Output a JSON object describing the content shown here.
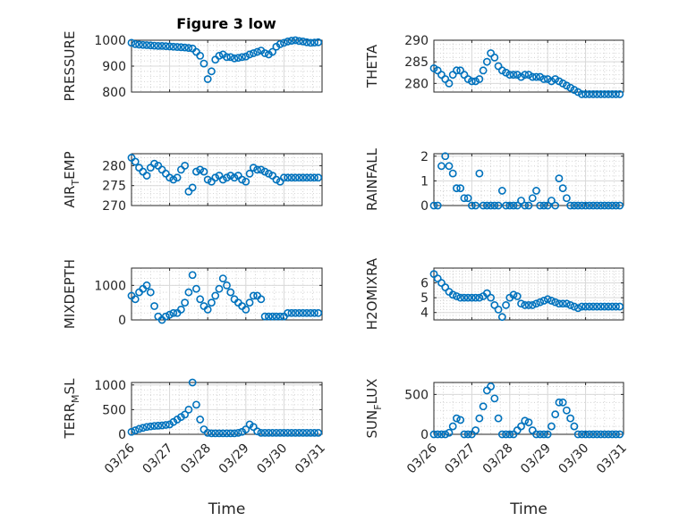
{
  "figure": {
    "title": "Figure 3 low",
    "marker_color": "#0072BD"
  },
  "chart_data": [
    {
      "type": "scatter",
      "subplot": "left-row-1",
      "title": "Figure 3 low",
      "ylabel": "PRESSURE",
      "xlabel": "",
      "xlim": [
        0,
        5
      ],
      "ylim": [
        800,
        1000
      ],
      "yticks": [
        800,
        900,
        1000
      ],
      "xticks": [
        0,
        1,
        2,
        3,
        4,
        5
      ],
      "xticklabels": [],
      "minor_grid": true,
      "grid": true,
      "x": [
        0.0,
        0.1,
        0.2,
        0.3,
        0.4,
        0.5,
        0.6,
        0.7,
        0.8,
        0.9,
        1.0,
        1.1,
        1.2,
        1.3,
        1.4,
        1.5,
        1.6,
        1.7,
        1.8,
        1.9,
        2.0,
        2.1,
        2.2,
        2.3,
        2.4,
        2.5,
        2.6,
        2.7,
        2.8,
        2.9,
        3.0,
        3.1,
        3.2,
        3.3,
        3.4,
        3.5,
        3.6,
        3.7,
        3.8,
        3.9,
        4.0,
        4.1,
        4.2,
        4.3,
        4.4,
        4.5,
        4.6,
        4.7,
        4.8,
        4.9
      ],
      "y": [
        990,
        985,
        983,
        982,
        981,
        980,
        979,
        978,
        978,
        977,
        976,
        975,
        974,
        973,
        972,
        970,
        968,
        955,
        940,
        910,
        850,
        880,
        925,
        940,
        945,
        935,
        935,
        930,
        932,
        935,
        937,
        945,
        950,
        955,
        960,
        950,
        945,
        955,
        975,
        985,
        990,
        995,
        998,
        1000,
        997,
        995,
        992,
        990,
        991,
        992
      ]
    },
    {
      "type": "scatter",
      "subplot": "right-row-1",
      "ylabel": "THETA",
      "xlabel": "",
      "xlim": [
        0,
        5
      ],
      "ylim": [
        278,
        290
      ],
      "yticks": [
        280,
        285,
        290
      ],
      "xticks": [
        0,
        1,
        2,
        3,
        4,
        5
      ],
      "xticklabels": [],
      "minor_grid": true,
      "grid": true,
      "x": [
        0.0,
        0.1,
        0.2,
        0.3,
        0.4,
        0.5,
        0.6,
        0.7,
        0.8,
        0.9,
        1.0,
        1.1,
        1.2,
        1.3,
        1.4,
        1.5,
        1.6,
        1.7,
        1.8,
        1.9,
        2.0,
        2.1,
        2.2,
        2.3,
        2.4,
        2.5,
        2.6,
        2.7,
        2.8,
        2.9,
        3.0,
        3.1,
        3.2,
        3.3,
        3.4,
        3.5,
        3.6,
        3.7,
        3.8,
        3.9,
        4.0,
        4.1,
        4.2,
        4.3,
        4.4,
        4.5,
        4.6,
        4.7,
        4.8,
        4.9
      ],
      "y": [
        283.5,
        283,
        282,
        281,
        280,
        282,
        283,
        283,
        282,
        281,
        280.5,
        280.5,
        281,
        283,
        285,
        287,
        286,
        284,
        283,
        282.5,
        282,
        282,
        282,
        281.5,
        282,
        282,
        281.5,
        281.5,
        281.5,
        281,
        281,
        280.5,
        281,
        280.5,
        280,
        279.5,
        279,
        278.5,
        278,
        277.5,
        277.5,
        277.5,
        277.5,
        277.5,
        277.5,
        277.5,
        277.5,
        277.5,
        277.5,
        277.5
      ]
    },
    {
      "type": "scatter",
      "subplot": "left-row-2",
      "ylabel": "AIR_TEMP",
      "xlabel": "",
      "xlim": [
        0,
        5
      ],
      "ylim": [
        270,
        283
      ],
      "yticks": [
        270,
        275,
        280
      ],
      "xticks": [
        0,
        1,
        2,
        3,
        4,
        5
      ],
      "xticklabels": [],
      "minor_grid": true,
      "grid": true,
      "x": [
        0.0,
        0.1,
        0.2,
        0.3,
        0.4,
        0.5,
        0.6,
        0.7,
        0.8,
        0.9,
        1.0,
        1.1,
        1.2,
        1.3,
        1.4,
        1.5,
        1.6,
        1.7,
        1.8,
        1.9,
        2.0,
        2.1,
        2.2,
        2.3,
        2.4,
        2.5,
        2.6,
        2.7,
        2.8,
        2.9,
        3.0,
        3.1,
        3.2,
        3.3,
        3.4,
        3.5,
        3.6,
        3.7,
        3.8,
        3.9,
        4.0,
        4.1,
        4.2,
        4.3,
        4.4,
        4.5,
        4.6,
        4.7,
        4.8,
        4.9
      ],
      "y": [
        282,
        281,
        279.5,
        278.5,
        277.5,
        279.5,
        280.5,
        280,
        279,
        278,
        277,
        276.5,
        277,
        279,
        280,
        273.5,
        274.5,
        278.5,
        279,
        278.5,
        276.5,
        276,
        277,
        277.5,
        276.5,
        277,
        277.5,
        277,
        277.5,
        276.5,
        276,
        278,
        279.5,
        279,
        279,
        278.5,
        278,
        277.5,
        276.5,
        276,
        277,
        277,
        277,
        277,
        277,
        277,
        277,
        277,
        277,
        277
      ]
    },
    {
      "type": "scatter",
      "subplot": "right-row-2",
      "ylabel": "RAINFALL",
      "xlabel": "",
      "xlim": [
        0,
        5
      ],
      "ylim": [
        0,
        2.1
      ],
      "yticks": [
        0,
        1,
        2
      ],
      "xticks": [
        0,
        1,
        2,
        3,
        4,
        5
      ],
      "xticklabels": [],
      "minor_grid": true,
      "grid": true,
      "x": [
        0.0,
        0.1,
        0.2,
        0.3,
        0.4,
        0.5,
        0.6,
        0.7,
        0.8,
        0.9,
        1.0,
        1.1,
        1.2,
        1.3,
        1.4,
        1.5,
        1.6,
        1.7,
        1.8,
        1.9,
        2.0,
        2.1,
        2.2,
        2.3,
        2.4,
        2.5,
        2.6,
        2.7,
        2.8,
        2.9,
        3.0,
        3.1,
        3.2,
        3.3,
        3.4,
        3.5,
        3.6,
        3.7,
        3.8,
        3.9,
        4.0,
        4.1,
        4.2,
        4.3,
        4.4,
        4.5,
        4.6,
        4.7,
        4.8,
        4.9
      ],
      "y": [
        0,
        0,
        1.6,
        2.0,
        1.6,
        1.3,
        0.7,
        0.7,
        0.3,
        0.3,
        0,
        0,
        1.3,
        0,
        0,
        0,
        0,
        0,
        0.6,
        0,
        0,
        0,
        0,
        0.2,
        0,
        0,
        0.3,
        0.6,
        0,
        0,
        0,
        0.2,
        0,
        1.1,
        0.7,
        0.3,
        0,
        0,
        0,
        0,
        0,
        0,
        0,
        0,
        0,
        0,
        0,
        0,
        0,
        0
      ]
    },
    {
      "type": "scatter",
      "subplot": "left-row-3",
      "ylabel": "MIXDEPTH",
      "xlabel": "",
      "xlim": [
        0,
        5
      ],
      "ylim": [
        0,
        1500
      ],
      "yticks": [
        0,
        1000
      ],
      "xticks": [
        0,
        1,
        2,
        3,
        4,
        5
      ],
      "xticklabels": [],
      "minor_grid": true,
      "grid": true,
      "x": [
        0.0,
        0.1,
        0.2,
        0.3,
        0.4,
        0.5,
        0.6,
        0.7,
        0.8,
        0.9,
        1.0,
        1.1,
        1.2,
        1.3,
        1.4,
        1.5,
        1.6,
        1.7,
        1.8,
        1.9,
        2.0,
        2.1,
        2.2,
        2.3,
        2.4,
        2.5,
        2.6,
        2.7,
        2.8,
        2.9,
        3.0,
        3.1,
        3.2,
        3.3,
        3.4,
        3.5,
        3.6,
        3.7,
        3.8,
        3.9,
        4.0,
        4.1,
        4.2,
        4.3,
        4.4,
        4.5,
        4.6,
        4.7,
        4.8,
        4.9
      ],
      "y": [
        700,
        600,
        800,
        900,
        1000,
        800,
        400,
        100,
        0,
        100,
        150,
        200,
        200,
        300,
        500,
        800,
        1300,
        900,
        600,
        400,
        300,
        500,
        700,
        900,
        1200,
        1000,
        800,
        600,
        500,
        400,
        300,
        500,
        700,
        700,
        600,
        100,
        100,
        100,
        100,
        100,
        100,
        200,
        200,
        200,
        200,
        200,
        200,
        200,
        200,
        200
      ]
    },
    {
      "type": "scatter",
      "subplot": "right-row-3",
      "ylabel": "H2OMIXRA",
      "xlabel": "",
      "xlim": [
        0,
        5
      ],
      "ylim": [
        3.5,
        7
      ],
      "yticks": [
        4,
        5,
        6
      ],
      "xticks": [
        0,
        1,
        2,
        3,
        4,
        5
      ],
      "xticklabels": [],
      "minor_grid": true,
      "grid": true,
      "x": [
        0.0,
        0.1,
        0.2,
        0.3,
        0.4,
        0.5,
        0.6,
        0.7,
        0.8,
        0.9,
        1.0,
        1.1,
        1.2,
        1.3,
        1.4,
        1.5,
        1.6,
        1.7,
        1.8,
        1.9,
        2.0,
        2.1,
        2.2,
        2.3,
        2.4,
        2.5,
        2.6,
        2.7,
        2.8,
        2.9,
        3.0,
        3.1,
        3.2,
        3.3,
        3.4,
        3.5,
        3.6,
        3.7,
        3.8,
        3.9,
        4.0,
        4.1,
        4.2,
        4.3,
        4.4,
        4.5,
        4.6,
        4.7,
        4.8,
        4.9
      ],
      "y": [
        6.6,
        6.3,
        6.0,
        5.7,
        5.4,
        5.2,
        5.1,
        5.0,
        5.0,
        5.0,
        5.0,
        5.0,
        5.0,
        5.1,
        5.3,
        5.0,
        4.5,
        4.2,
        3.7,
        4.5,
        5.0,
        5.2,
        5.1,
        4.6,
        4.5,
        4.5,
        4.5,
        4.6,
        4.7,
        4.8,
        4.9,
        4.8,
        4.7,
        4.6,
        4.6,
        4.6,
        4.5,
        4.4,
        4.3,
        4.4,
        4.4,
        4.4,
        4.4,
        4.4,
        4.4,
        4.4,
        4.4,
        4.4,
        4.4,
        4.4
      ]
    },
    {
      "type": "scatter",
      "subplot": "left-row-4",
      "ylabel": "TERR_MSL",
      "xlabel": "Time",
      "xlim": [
        0,
        5
      ],
      "ylim": [
        0,
        1050
      ],
      "yticks": [
        0,
        500,
        1000
      ],
      "xticks": [
        0,
        1,
        2,
        3,
        4,
        5
      ],
      "xticklabels": [
        "03/26",
        "03/27",
        "03/28",
        "03/29",
        "03/30",
        "03/31"
      ],
      "minor_grid": true,
      "grid": true,
      "x": [
        0.0,
        0.1,
        0.2,
        0.3,
        0.4,
        0.5,
        0.6,
        0.7,
        0.8,
        0.9,
        1.0,
        1.1,
        1.2,
        1.3,
        1.4,
        1.5,
        1.6,
        1.7,
        1.8,
        1.9,
        2.0,
        2.1,
        2.2,
        2.3,
        2.4,
        2.5,
        2.6,
        2.7,
        2.8,
        2.9,
        3.0,
        3.1,
        3.2,
        3.3,
        3.4,
        3.5,
        3.6,
        3.7,
        3.8,
        3.9,
        4.0,
        4.1,
        4.2,
        4.3,
        4.4,
        4.5,
        4.6,
        4.7,
        4.8,
        4.9
      ],
      "y": [
        50,
        80,
        110,
        130,
        150,
        160,
        170,
        175,
        180,
        190,
        200,
        250,
        300,
        350,
        400,
        500,
        1050,
        600,
        300,
        100,
        30,
        20,
        20,
        20,
        20,
        20,
        20,
        20,
        30,
        50,
        100,
        200,
        150,
        60,
        30,
        30,
        30,
        30,
        30,
        30,
        30,
        30,
        30,
        30,
        30,
        30,
        30,
        30,
        30,
        30
      ]
    },
    {
      "type": "scatter",
      "subplot": "right-row-4",
      "ylabel": "SUN_FLUX",
      "xlabel": "Time",
      "xlim": [
        0,
        5
      ],
      "ylim": [
        0,
        650
      ],
      "yticks": [
        0,
        500
      ],
      "xticks": [
        0,
        1,
        2,
        3,
        4,
        5
      ],
      "xticklabels": [
        "03/26",
        "03/27",
        "03/28",
        "03/29",
        "03/30",
        "03/31"
      ],
      "minor_grid": true,
      "grid": true,
      "x": [
        0.0,
        0.1,
        0.2,
        0.3,
        0.4,
        0.5,
        0.6,
        0.7,
        0.8,
        0.9,
        1.0,
        1.1,
        1.2,
        1.3,
        1.4,
        1.5,
        1.6,
        1.7,
        1.8,
        1.9,
        2.0,
        2.1,
        2.2,
        2.3,
        2.4,
        2.5,
        2.6,
        2.7,
        2.8,
        2.9,
        3.0,
        3.1,
        3.2,
        3.3,
        3.4,
        3.5,
        3.6,
        3.7,
        3.8,
        3.9,
        4.0,
        4.1,
        4.2,
        4.3,
        4.4,
        4.5,
        4.6,
        4.7,
        4.8,
        4.9
      ],
      "y": [
        0,
        0,
        0,
        0,
        20,
        100,
        200,
        180,
        0,
        0,
        0,
        50,
        200,
        350,
        550,
        600,
        450,
        200,
        0,
        0,
        0,
        0,
        50,
        100,
        170,
        150,
        50,
        0,
        0,
        0,
        0,
        100,
        250,
        400,
        400,
        300,
        200,
        100,
        0,
        0,
        0,
        0,
        0,
        0,
        0,
        0,
        0,
        0,
        0,
        0
      ]
    }
  ]
}
